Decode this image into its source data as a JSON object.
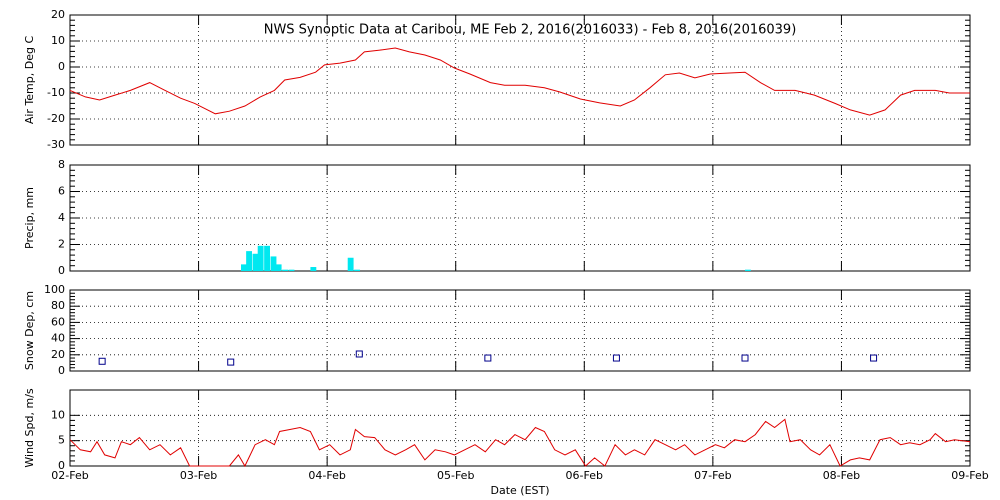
{
  "chart_data": [
    {
      "type": "line",
      "title": "NWS Synoptic Data at Caribou, ME   Feb  2, 2016(2016033) - Feb  8, 2016(2016039)",
      "ylabel": "Air Temp, Deg C",
      "color": "#e00000",
      "grid": true,
      "xlim": [
        0,
        7
      ],
      "ylim": [
        -30,
        20
      ],
      "yticks": [
        -30,
        -20,
        -10,
        0,
        10,
        20
      ],
      "x": [
        0,
        0.12,
        0.23,
        0.35,
        0.47,
        0.62,
        0.74,
        0.86,
        0.97,
        1.13,
        1.24,
        1.36,
        1.48,
        1.59,
        1.67,
        1.79,
        1.91,
        1.98,
        2.1,
        2.22,
        2.29,
        2.41,
        2.53,
        2.64,
        2.76,
        2.88,
        2.99,
        3.11,
        3.27,
        3.38,
        3.54,
        3.69,
        3.81,
        3.97,
        4.12,
        4.28,
        4.39,
        4.51,
        4.63,
        4.74,
        4.86,
        4.98,
        5.13,
        5.25,
        5.37,
        5.48,
        5.64,
        5.79,
        5.95,
        6.07,
        6.22,
        6.34,
        6.46,
        6.57,
        6.73,
        6.84,
        7
      ],
      "values": [
        -9,
        -11.5,
        -12.7,
        -10.8,
        -9,
        -6,
        -9,
        -12,
        -14,
        -18,
        -17,
        -15,
        -11.5,
        -9,
        -5,
        -4,
        -2,
        0.8,
        1.5,
        2.7,
        5.8,
        6.5,
        7.3,
        5.8,
        4.6,
        2.7,
        -0.4,
        -2.7,
        -6,
        -7,
        -7,
        -8,
        -9.6,
        -12.3,
        -13.8,
        -15,
        -12.7,
        -8,
        -3,
        -2.3,
        -4.2,
        -2.7,
        -2.3,
        -2,
        -6,
        -9,
        -9,
        -10.8,
        -14,
        -16.5,
        -18.5,
        -16.5,
        -10.8,
        -9,
        -9,
        -10,
        -10
      ]
    },
    {
      "type": "bar",
      "ylabel": "Precip, mm",
      "color": "#00e8f0",
      "grid": true,
      "xlim": [
        0,
        7
      ],
      "ylim": [
        0,
        8
      ],
      "yticks": [
        0,
        2,
        4,
        6,
        8
      ],
      "x": [
        1.33,
        1.37,
        1.42,
        1.46,
        1.51,
        1.56,
        1.6,
        1.65,
        1.7,
        1.87,
        2.16,
        2.21,
        5.25
      ],
      "values": [
        0.5,
        1.5,
        1.3,
        1.9,
        1.9,
        1.1,
        0.5,
        0.1,
        0.1,
        0.3,
        1.0,
        0.1,
        0.1
      ]
    },
    {
      "type": "scatter",
      "ylabel": "Snow Dep, cm",
      "color": "#00008b",
      "grid": true,
      "xlim": [
        0,
        7
      ],
      "ylim": [
        0,
        100
      ],
      "yticks": [
        0,
        20,
        40,
        60,
        80,
        100
      ],
      "x": [
        0.25,
        1.25,
        2.25,
        3.25,
        4.25,
        5.25,
        6.25
      ],
      "values": [
        12,
        11,
        21,
        16,
        16,
        16,
        16
      ]
    },
    {
      "type": "line",
      "ylabel": "Wind Spd, m/s",
      "xlabel": "Date (EST)",
      "color": "#e00000",
      "grid": true,
      "xlim": [
        0,
        7
      ],
      "ylim": [
        0,
        15
      ],
      "yticks": [
        0,
        5,
        10
      ],
      "xticks": [
        {
          "value": 0,
          "label": "02-Feb"
        },
        {
          "value": 1,
          "label": "03-Feb"
        },
        {
          "value": 2,
          "label": "04-Feb"
        },
        {
          "value": 3,
          "label": "05-Feb"
        },
        {
          "value": 4,
          "label": "06-Feb"
        },
        {
          "value": 5,
          "label": "07-Feb"
        },
        {
          "value": 6,
          "label": "08-Feb"
        },
        {
          "value": 7,
          "label": "09-Feb"
        }
      ],
      "x": [
        0,
        0.08,
        0.16,
        0.21,
        0.27,
        0.35,
        0.4,
        0.47,
        0.54,
        0.62,
        0.7,
        0.78,
        0.86,
        0.93,
        1.01,
        1.13,
        1.24,
        1.31,
        1.36,
        1.44,
        1.52,
        1.59,
        1.63,
        1.71,
        1.79,
        1.87,
        1.94,
        2.02,
        2.1,
        2.18,
        2.22,
        2.29,
        2.37,
        2.45,
        2.53,
        2.61,
        2.68,
        2.76,
        2.84,
        2.92,
        2.99,
        3.07,
        3.15,
        3.23,
        3.31,
        3.38,
        3.46,
        3.54,
        3.62,
        3.69,
        3.77,
        3.85,
        3.93,
        4.01,
        4.08,
        4.16,
        4.24,
        4.32,
        4.39,
        4.47,
        4.55,
        4.63,
        4.71,
        4.78,
        4.86,
        4.94,
        5.02,
        5.09,
        5.17,
        5.25,
        5.33,
        5.41,
        5.48,
        5.56,
        5.6,
        5.68,
        5.76,
        5.83,
        5.91,
        5.99,
        6.07,
        6.14,
        6.22,
        6.3,
        6.38,
        6.46,
        6.53,
        6.61,
        6.69,
        6.73,
        6.81,
        6.88,
        7
      ],
      "values": [
        5.2,
        3.2,
        2.8,
        4.8,
        2.2,
        1.6,
        4.8,
        4.2,
        5.6,
        3.2,
        4.2,
        2.2,
        3.6,
        0,
        0,
        0,
        0,
        2.2,
        0,
        4.2,
        5.2,
        4.2,
        6.8,
        7.2,
        7.6,
        6.8,
        3.2,
        4.2,
        2.2,
        3.2,
        7.2,
        5.8,
        5.6,
        3.2,
        2.2,
        3.2,
        4.2,
        1.2,
        3.2,
        2.8,
        2.2,
        3.2,
        4.2,
        2.8,
        5.2,
        4.2,
        6.2,
        5.2,
        7.6,
        6.8,
        3.2,
        2.2,
        3.2,
        0,
        1.6,
        0,
        4.2,
        2.2,
        3.2,
        2.2,
        5.2,
        4.2,
        3.2,
        4.2,
        2.2,
        3.2,
        4.2,
        3.6,
        5.2,
        4.8,
        6.2,
        8.8,
        7.6,
        9.2,
        4.8,
        5.2,
        3.2,
        2.2,
        4.2,
        0,
        1.2,
        1.6,
        1.2,
        5.2,
        5.6,
        4.2,
        4.6,
        4.2,
        5.2,
        6.4,
        4.8,
        5.2,
        4.8
      ]
    }
  ]
}
